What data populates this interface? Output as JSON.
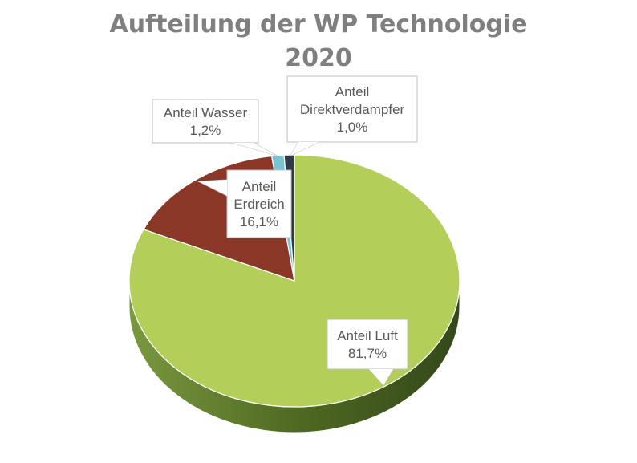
{
  "chart_data": {
    "type": "pie",
    "title": "Aufteilung der WP Technologie 2020",
    "title_lines": [
      "Aufteilung der WP Technologie",
      "2020"
    ],
    "three_d": true,
    "slices": [
      {
        "label_lines": [
          "Anteil Luft"
        ],
        "value_text": "81,7%",
        "value": 81.7,
        "color": "#b3cf5a",
        "side_color": "#5e7a2a"
      },
      {
        "label_lines": [
          "Anteil",
          "Erdreich"
        ],
        "value_text": "16,1%",
        "value": 16.1,
        "color": "#8b3727",
        "side_color": "#4e1c12"
      },
      {
        "label_lines": [
          "Anteil Wasser"
        ],
        "value_text": "1,2%",
        "value": 1.2,
        "color": "#79c3d3",
        "side_color": "#3e7480"
      },
      {
        "label_lines": [
          "Anteil",
          "Direktverdampfer"
        ],
        "value_text": "1,0%",
        "value": 1.0,
        "color": "#2e3b47",
        "side_color": "#161d24"
      }
    ]
  }
}
